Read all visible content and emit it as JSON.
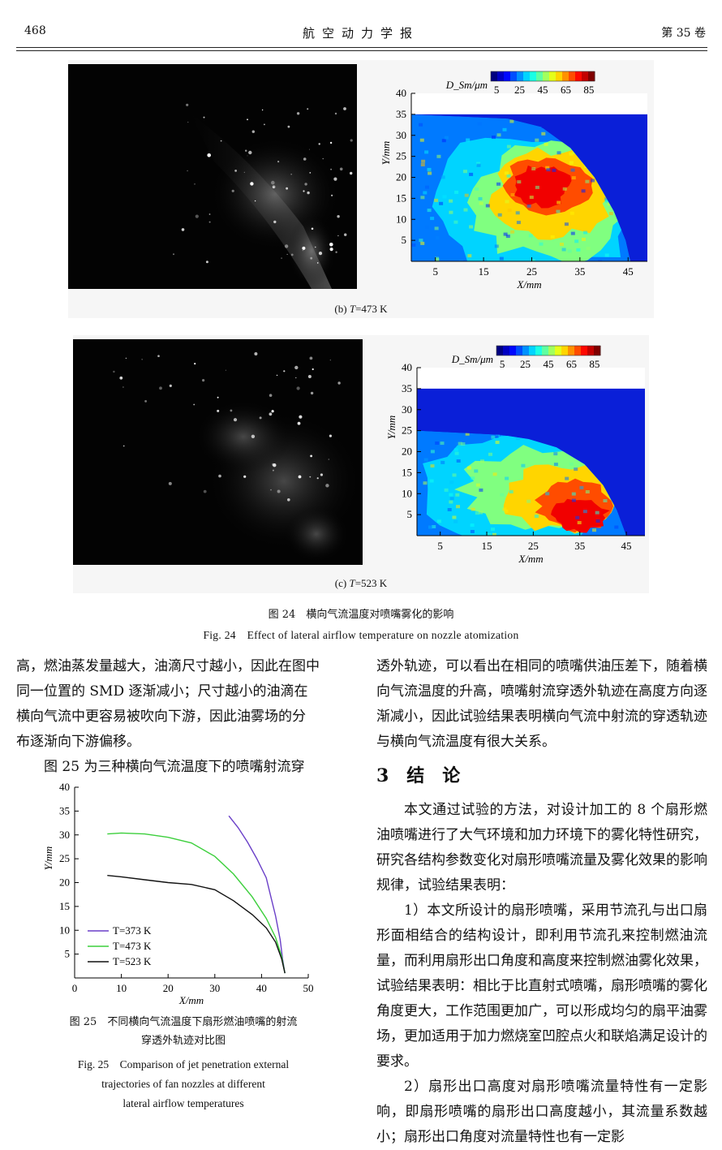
{
  "header": {
    "page_number": "468",
    "journal": "航空动力学报",
    "volume": "第 35 卷"
  },
  "fig24": {
    "panel_b": {
      "caption_prefix": "(b) ",
      "caption_var": "T",
      "caption_suffix": "=473 K"
    },
    "panel_c": {
      "caption_prefix": "(c) ",
      "caption_var": "T",
      "caption_suffix": "=523 K"
    },
    "caption_cn": "图 24　横向气流温度对喷嘴雾化的影响",
    "caption_en": "Fig. 24　Effect of lateral airflow temperature on nozzle atomization"
  },
  "chart_data": [
    {
      "type": "heatmap",
      "title": "",
      "xlabel": "X/mm",
      "ylabel": "Y/mm",
      "xlim": [
        0,
        49
      ],
      "ylim": [
        0,
        40
      ],
      "xticks": [
        5,
        15,
        25,
        35,
        45
      ],
      "yticks": [
        5,
        10,
        15,
        20,
        25,
        30,
        35,
        40
      ],
      "colorbar": {
        "label": "D_Sm/μm",
        "ticks": [
          5,
          25,
          45,
          65,
          85
        ],
        "range": [
          0,
          90
        ]
      },
      "field_top_y": 35,
      "spray_boundary": [
        [
          0,
          35
        ],
        [
          20,
          34
        ],
        [
          27,
          32
        ],
        [
          33,
          27
        ],
        [
          38,
          20
        ],
        [
          42,
          12
        ],
        [
          44.5,
          5
        ],
        [
          45.5,
          0
        ]
      ],
      "zones": [
        {
          "label": "red core",
          "value": 80,
          "center": [
            27,
            18
          ],
          "radius": [
            6,
            5
          ]
        },
        {
          "label": "orange",
          "value": 72,
          "center": [
            28,
            18
          ],
          "radius": [
            9,
            7
          ]
        },
        {
          "label": "yellow",
          "value": 60,
          "center": [
            29,
            16
          ],
          "radius": [
            12,
            11
          ]
        },
        {
          "label": "green",
          "value": 45,
          "center": [
            29,
            14
          ],
          "radius": [
            16,
            14
          ]
        },
        {
          "label": "cyan",
          "value": 30,
          "center": [
            25,
            13
          ],
          "radius": [
            22,
            18
          ]
        }
      ]
    },
    {
      "type": "heatmap",
      "title": "",
      "xlabel": "X/mm",
      "ylabel": "Y/mm",
      "xlim": [
        0,
        49
      ],
      "ylim": [
        0,
        40
      ],
      "xticks": [
        5,
        15,
        25,
        35,
        45
      ],
      "yticks": [
        5,
        10,
        15,
        20,
        25,
        30,
        35,
        40
      ],
      "colorbar": {
        "label": "D_Sm/μm",
        "ticks": [
          5,
          25,
          45,
          65,
          85
        ],
        "range": [
          0,
          90
        ]
      },
      "field_top_y": 35,
      "spray_boundary": [
        [
          0,
          25
        ],
        [
          18,
          24
        ],
        [
          24,
          23
        ],
        [
          30,
          21
        ],
        [
          36,
          17
        ],
        [
          40,
          12
        ],
        [
          43,
          6
        ],
        [
          45,
          0
        ]
      ],
      "zones": [
        {
          "label": "red core",
          "value": 80,
          "center": [
            35,
            5
          ],
          "radius": [
            6,
            4
          ]
        },
        {
          "label": "orange",
          "value": 72,
          "center": [
            34,
            7
          ],
          "radius": [
            8,
            6
          ]
        },
        {
          "label": "yellow",
          "value": 60,
          "center": [
            31,
            9
          ],
          "radius": [
            12,
            8
          ]
        },
        {
          "label": "green",
          "value": 45,
          "center": [
            27,
            11
          ],
          "radius": [
            17,
            10
          ]
        },
        {
          "label": "cyan",
          "value": 30,
          "center": [
            23,
            11
          ],
          "radius": [
            22,
            13
          ]
        }
      ]
    },
    {
      "type": "line",
      "title": "",
      "xlabel": "X/mm",
      "ylabel": "Y/mm",
      "xlim": [
        0,
        50
      ],
      "ylim": [
        0,
        40
      ],
      "xticks": [
        0,
        10,
        20,
        30,
        40,
        50
      ],
      "yticks": [
        5,
        10,
        15,
        20,
        25,
        30,
        35,
        40
      ],
      "legend": "bottom-left",
      "series": [
        {
          "name": "T=373 K",
          "color": "#6a3fc8",
          "x": [
            33,
            35,
            37,
            39,
            41,
            42,
            43,
            44,
            44.5,
            45
          ],
          "y": [
            34,
            31.5,
            28.5,
            25,
            21,
            17,
            13,
            8,
            4,
            1
          ]
        },
        {
          "name": "T=473 K",
          "color": "#3ccf3c",
          "x": [
            7,
            10,
            15,
            20,
            25,
            30,
            34,
            38,
            41,
            43,
            44.3,
            45
          ],
          "y": [
            30.2,
            30.4,
            30.2,
            29.5,
            28.3,
            25.5,
            21.8,
            17,
            12.5,
            8.5,
            4.5,
            1
          ]
        },
        {
          "name": "T=523 K",
          "color": "#111111",
          "x": [
            7,
            10,
            15,
            20,
            25,
            30,
            34,
            38,
            41,
            43,
            44.3,
            45
          ],
          "y": [
            21.5,
            21.2,
            20.6,
            20,
            19.6,
            18.5,
            16.2,
            13.3,
            10.5,
            7.5,
            4,
            1
          ]
        }
      ]
    }
  ],
  "text_left": {
    "lines": [
      "高，燃油蒸发量越大，油滴尺寸越小，因此在图中",
      "同一位置的 SMD 逐渐减小；尺寸越小的油滴在",
      "横向气流中更容易被吹向下游，因此油雾场的分",
      "布逐渐向下游偏移。"
    ],
    "para2": "图 25 为三种横向气流温度下的喷嘴射流穿"
  },
  "fig25": {
    "caption_cn_1": "图 25　不同横向气流温度下扇形燃油喷嘴的射流",
    "caption_cn_2": "穿透外轨迹对比图",
    "caption_en_1": "Fig. 25　Comparison of jet penetration external",
    "caption_en_2": "trajectories of fan nozzles at different",
    "caption_en_3": "lateral airflow temperatures"
  },
  "text_right": {
    "para1": "透外轨迹，可以看出在相同的喷嘴供油压差下，随着横向气流温度的升高，喷嘴射流穿透外轨迹在高度方向逐渐减小，因此试验结果表明横向气流中射流的穿透轨迹与横向气流温度有很大关系。",
    "section_title": "3　结　论",
    "para2": "本文通过试验的方法，对设计加工的 8 个扇形燃油喷嘴进行了大气环境和加力环境下的雾化特性研究，研究各结构参数变化对扇形喷嘴流量及雾化效果的影响规律，试验结果表明：",
    "para3": "1）本文所设计的扇形喷嘴，采用节流孔与出口扇形面相结合的结构设计，即利用节流孔来控制燃油流量，而利用扇形出口角度和高度来控制燃油雾化效果，试验结果表明：相比于比直射式喷嘴，扇形喷嘴的雾化角度更大，工作范围更加广，可以形成均匀的扇平油雾场，更加适用于加力燃烧室凹腔点火和联焰满足设计的要求。",
    "para4": "2）扇形出口高度对扇形喷嘴流量特性有一定影响，即扇形喷嘴的扇形出口高度越小，其流量系数越小；扇形出口角度对流量特性也有一定影"
  }
}
